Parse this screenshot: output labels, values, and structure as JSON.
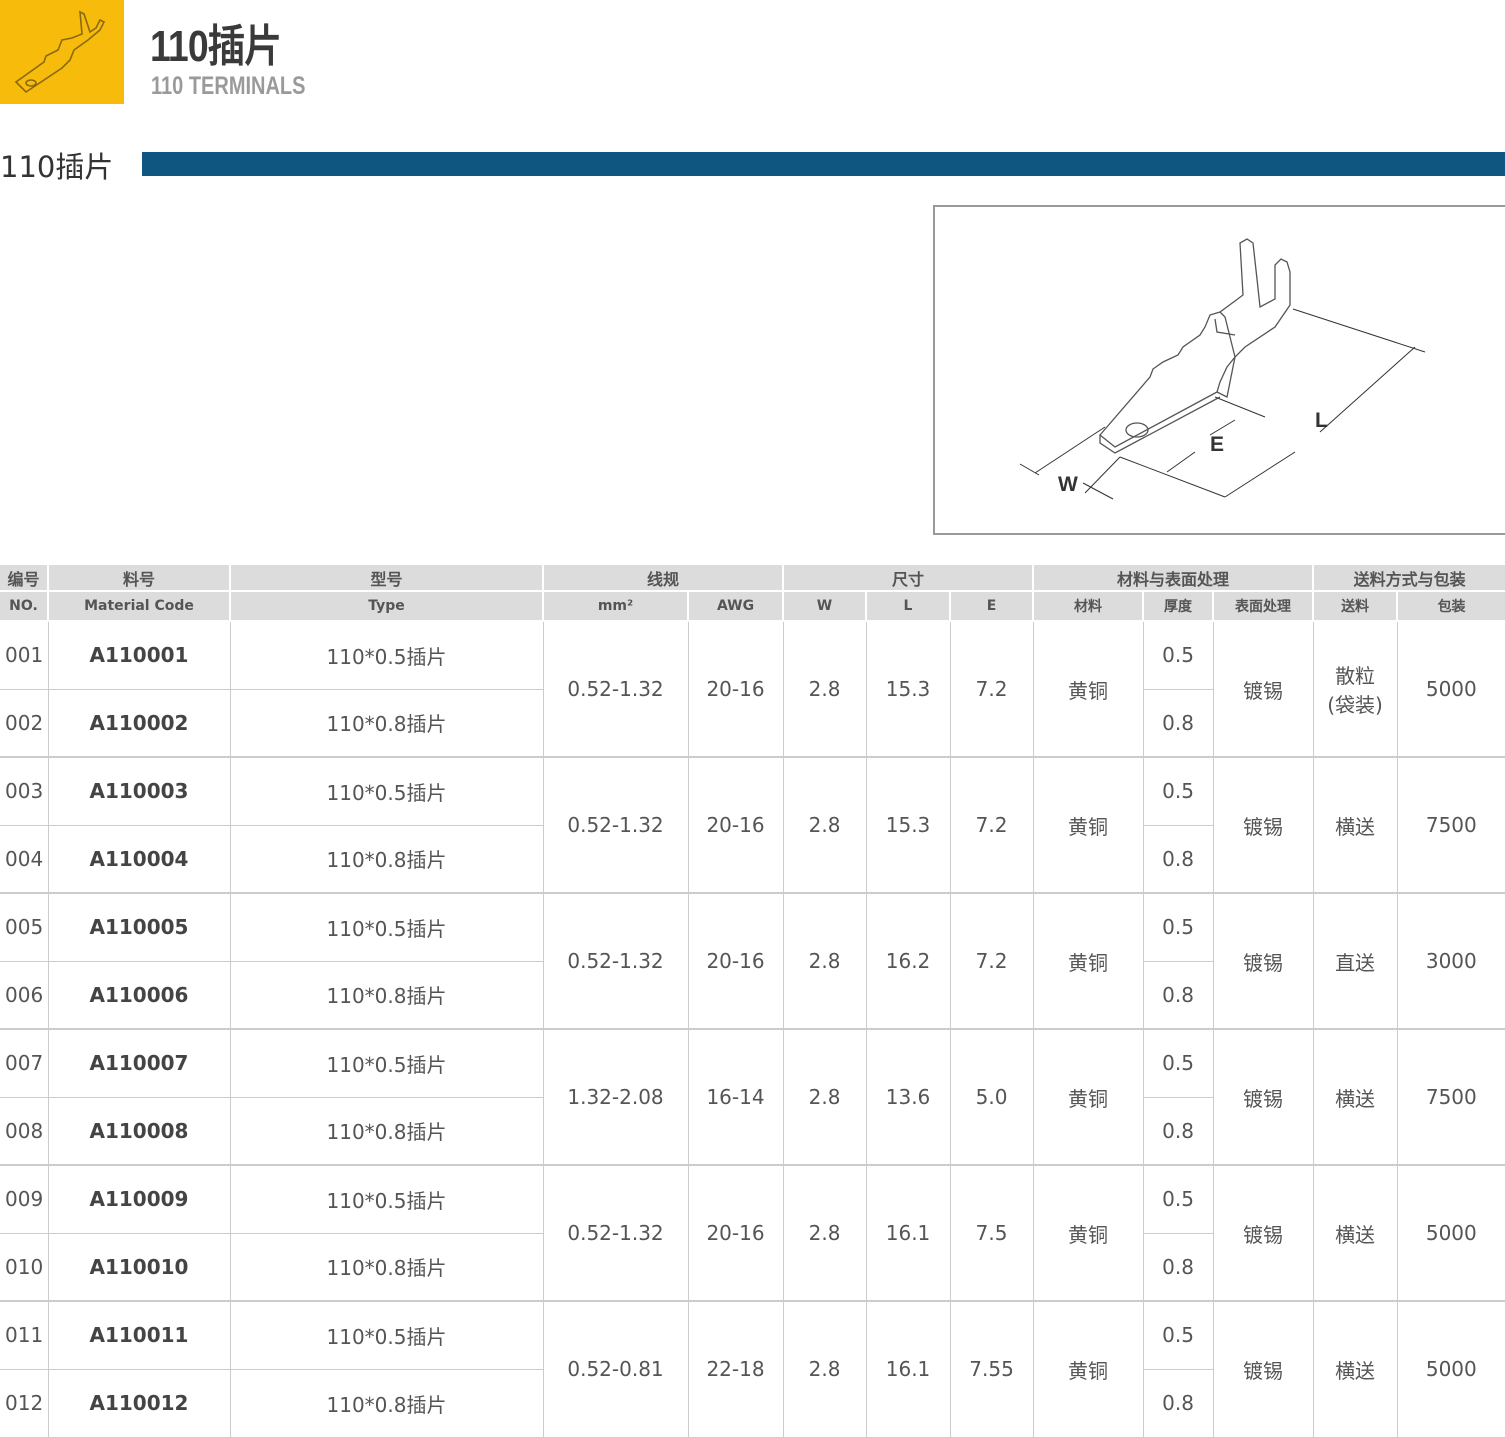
{
  "header": {
    "title": "110插片",
    "subtitle": "110 TERMINALS",
    "section_title": "110插片"
  },
  "colors": {
    "logo_bg": "#f7bb0c",
    "section_bar": "#0f5680",
    "header_bg": "#dcdcdc"
  },
  "diagram": {
    "labels": {
      "w": "W",
      "e": "E",
      "l": "L"
    }
  },
  "table": {
    "group_headers": {
      "no": "编号",
      "code": "料号",
      "type": "型号",
      "wire": "线规",
      "size": "尺寸",
      "material": "材料与表面处理",
      "packing": "送料方式与包装"
    },
    "sub_headers": {
      "no": "NO.",
      "code": "Material Code",
      "type": "Type",
      "mm2": "mm²",
      "awg": "AWG",
      "w": "W",
      "l": "L",
      "e": "E",
      "material": "材料",
      "thickness": "厚度",
      "finish": "表面处理",
      "feed": "送料",
      "pack": "包装"
    },
    "groups": [
      {
        "mm2": "0.52-1.32",
        "awg": "20-16",
        "w": "2.8",
        "l": "15.3",
        "e": "7.2",
        "material": "黄铜",
        "finish": "镀锡",
        "feed": "散粒\n(袋装)",
        "pack": "5000",
        "items": [
          {
            "no": "001",
            "code": "A110001",
            "type": "110*0.5插片",
            "thickness": "0.5"
          },
          {
            "no": "002",
            "code": "A110002",
            "type": "110*0.8插片",
            "thickness": "0.8"
          }
        ]
      },
      {
        "mm2": "0.52-1.32",
        "awg": "20-16",
        "w": "2.8",
        "l": "15.3",
        "e": "7.2",
        "material": "黄铜",
        "finish": "镀锡",
        "feed": "横送",
        "pack": "7500",
        "items": [
          {
            "no": "003",
            "code": "A110003",
            "type": "110*0.5插片",
            "thickness": "0.5"
          },
          {
            "no": "004",
            "code": "A110004",
            "type": "110*0.8插片",
            "thickness": "0.8"
          }
        ]
      },
      {
        "mm2": "0.52-1.32",
        "awg": "20-16",
        "w": "2.8",
        "l": "16.2",
        "e": "7.2",
        "material": "黄铜",
        "finish": "镀锡",
        "feed": "直送",
        "pack": "3000",
        "items": [
          {
            "no": "005",
            "code": "A110005",
            "type": "110*0.5插片",
            "thickness": "0.5"
          },
          {
            "no": "006",
            "code": "A110006",
            "type": "110*0.8插片",
            "thickness": "0.8"
          }
        ]
      },
      {
        "mm2": "1.32-2.08",
        "awg": "16-14",
        "w": "2.8",
        "l": "13.6",
        "e": "5.0",
        "material": "黄铜",
        "finish": "镀锡",
        "feed": "横送",
        "pack": "7500",
        "items": [
          {
            "no": "007",
            "code": "A110007",
            "type": "110*0.5插片",
            "thickness": "0.5"
          },
          {
            "no": "008",
            "code": "A110008",
            "type": "110*0.8插片",
            "thickness": "0.8"
          }
        ]
      },
      {
        "mm2": "0.52-1.32",
        "awg": "20-16",
        "w": "2.8",
        "l": "16.1",
        "e": "7.5",
        "material": "黄铜",
        "finish": "镀锡",
        "feed": "横送",
        "pack": "5000",
        "items": [
          {
            "no": "009",
            "code": "A110009",
            "type": "110*0.5插片",
            "thickness": "0.5"
          },
          {
            "no": "010",
            "code": "A110010",
            "type": "110*0.8插片",
            "thickness": "0.8"
          }
        ]
      },
      {
        "mm2": "0.52-0.81",
        "awg": "22-18",
        "w": "2.8",
        "l": "16.1",
        "e": "7.55",
        "material": "黄铜",
        "finish": "镀锡",
        "feed": "横送",
        "pack": "5000",
        "items": [
          {
            "no": "011",
            "code": "A110011",
            "type": "110*0.5插片",
            "thickness": "0.5"
          },
          {
            "no": "012",
            "code": "A110012",
            "type": "110*0.8插片",
            "thickness": "0.8"
          }
        ]
      }
    ]
  }
}
